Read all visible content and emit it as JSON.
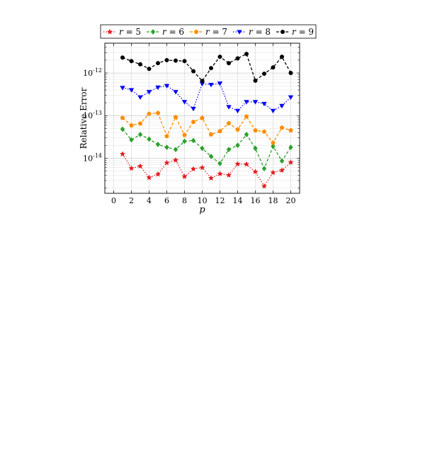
{
  "chart_data": {
    "type": "line",
    "xlabel": "p",
    "ylabel": "Relative Error",
    "xlim": [
      -1,
      21
    ],
    "ylim": [
      1.5e-15,
      5e-12
    ],
    "yscale": "log",
    "xticks": [
      0,
      2,
      4,
      6,
      8,
      10,
      12,
      14,
      16,
      18,
      20
    ],
    "yticks": [
      1e-14,
      1e-13,
      1e-12
    ],
    "ytick_labels": [
      "10^-14",
      "10^-13",
      "10^-12"
    ],
    "grid": true,
    "legend_position": "top",
    "x": [
      1,
      2,
      3,
      4,
      5,
      6,
      7,
      8,
      9,
      10,
      11,
      12,
      13,
      14,
      15,
      16,
      17,
      18,
      19,
      20
    ],
    "series": [
      {
        "name": "r = 5",
        "color": "#e41a1c",
        "linestyle": "dotted",
        "marker": "star",
        "values": [
          1.25e-14,
          5.8e-15,
          6.5e-15,
          3.5e-15,
          4.2e-15,
          7.8e-15,
          9e-15,
          3.7e-15,
          5.6e-15,
          6e-15,
          3.4e-15,
          4.3e-15,
          4e-15,
          7.3e-15,
          7.2e-15,
          4.8e-15,
          2.2e-15,
          4.6e-15,
          5.2e-15,
          8e-15
        ]
      },
      {
        "name": "r = 6",
        "color": "#2ca02c",
        "linestyle": "dashed",
        "marker": "diamond",
        "values": [
          4.8e-14,
          2.7e-14,
          3.6e-14,
          2.8e-14,
          2.1e-14,
          1.8e-14,
          1.6e-14,
          2.5e-14,
          2.6e-14,
          1.7e-14,
          1.1e-14,
          7.5e-15,
          1.6e-14,
          2e-14,
          3.6e-14,
          1.7e-14,
          5.7e-15,
          1.9e-14,
          8.6e-15,
          1.8e-14
        ]
      },
      {
        "name": "r = 7",
        "color": "#ff8c00",
        "linestyle": "dashed",
        "marker": "pentagon",
        "values": [
          8.8e-14,
          5.9e-14,
          6.5e-14,
          1.1e-13,
          1.15e-13,
          3.3e-14,
          9.2e-14,
          3.5e-14,
          7.1e-14,
          8.8e-14,
          3.6e-14,
          4.3e-14,
          6.6e-14,
          4.7e-14,
          9.5e-14,
          4.5e-14,
          4.2e-14,
          2.3e-14,
          5.2e-14,
          4.5e-14
        ]
      },
      {
        "name": "r = 8",
        "color": "#0000ff",
        "linestyle": "dotted",
        "marker": "triangle-down",
        "values": [
          4.5e-13,
          4e-13,
          2.7e-13,
          3.6e-13,
          4.6e-13,
          5e-13,
          3.6e-13,
          2.1e-13,
          1.45e-13,
          5.6e-13,
          5.3e-13,
          5.7e-13,
          1.6e-13,
          1.3e-13,
          2.1e-13,
          2.1e-13,
          1.9e-13,
          1.3e-13,
          1.7e-13,
          2.7e-13
        ]
      },
      {
        "name": "r = 9",
        "color": "#000000",
        "linestyle": "dashed",
        "marker": "circle",
        "values": [
          2.3e-12,
          1.9e-12,
          1.6e-12,
          1.25e-12,
          1.7e-12,
          2e-12,
          1.95e-12,
          1.9e-12,
          1.1e-12,
          6.5e-13,
          1.3e-12,
          2.4e-12,
          1.7e-12,
          2.2e-12,
          2.8e-12,
          6.6e-13,
          9.6e-13,
          1.35e-12,
          2.4e-12,
          1e-12
        ]
      }
    ]
  }
}
